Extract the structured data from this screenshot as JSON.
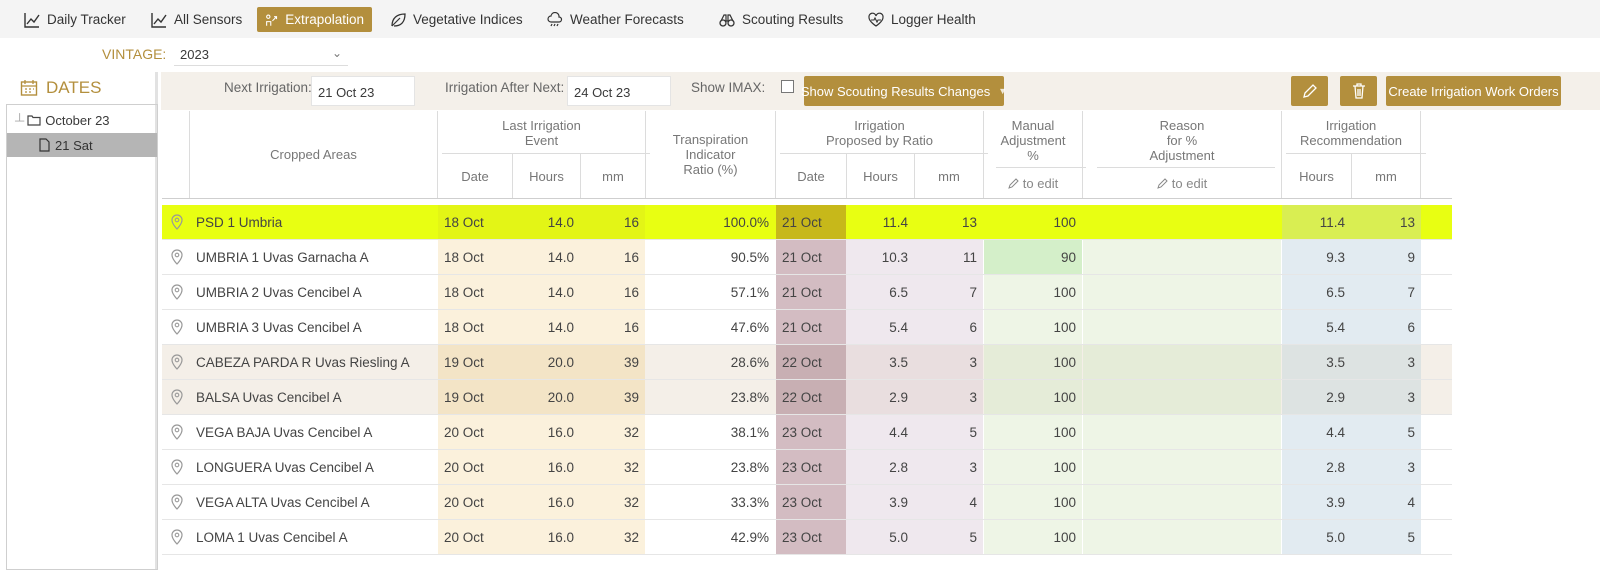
{
  "nav": {
    "items": [
      {
        "label": "Daily Tracker",
        "icon": "chart-line-icon"
      },
      {
        "label": "All Sensors",
        "icon": "chart-line-icon"
      },
      {
        "label": "Extrapolation",
        "icon": "extrapolation-icon",
        "active": true
      },
      {
        "label": "Vegetative Indices",
        "icon": "leaf-icon"
      },
      {
        "label": "Weather Forecasts",
        "icon": "cloud-rain-icon"
      },
      {
        "label": "Scouting Results",
        "icon": "binoculars-icon"
      },
      {
        "label": "Logger Health",
        "icon": "heart-pulse-icon"
      }
    ]
  },
  "vintage": {
    "label": "VINTAGE:",
    "value": "2023"
  },
  "dates": {
    "title": "DATES",
    "tree": [
      {
        "label": "October 23",
        "type": "folder"
      },
      {
        "label": "21 Sat",
        "type": "file",
        "selected": true
      }
    ]
  },
  "toolbar": {
    "next_irrigation_label": "Next Irrigation:",
    "next_irrigation_value": "21 Oct 23",
    "after_next_label": "Irrigation After Next:",
    "after_next_value": "24 Oct 23",
    "show_imax_label": "Show IMAX:",
    "scouting_button": "Show Scouting Results Changes",
    "create_orders_button": "Create Irrigation Work Orders"
  },
  "headers": {
    "cropped_areas": "Cropped Areas",
    "last_event": "Last Irrigation\nEvent",
    "tir": "Transpiration\nIndicator\nRatio (%)",
    "proposed": "Irrigation\nProposed by Ratio",
    "manual": "Manual\nAdjustment\n%",
    "reason": "Reason\nfor %\nAdjustment",
    "recommendation": "Irrigation\nRecommendation",
    "date": "Date",
    "hours": "Hours",
    "mm": "mm",
    "to_edit": "to edit"
  },
  "colors": {
    "accent": "#b38f3d",
    "highlight_row": "#e8ff12",
    "last_event_bg": "#fbf1dc",
    "proposed_date_bg": "#d3bcc2",
    "proposed_bg": "#efe8ee",
    "manual_bg": "#eef5e6",
    "rec_bg": "#e2ebf1"
  },
  "rows": [
    {
      "area": "PSD 1 Umbria",
      "last_date": "18 Oct",
      "last_hours": "14.0",
      "last_mm": "16",
      "tir": "100.0%",
      "prop_date": "21 Oct",
      "prop_hours": "11.4",
      "prop_mm": "13",
      "manual": "100",
      "reason": "",
      "rec_hours": "11.4",
      "rec_mm": "13",
      "highlight": true
    },
    {
      "area": "UMBRIA 1 Uvas Garnacha A",
      "last_date": "18 Oct",
      "last_hours": "14.0",
      "last_mm": "16",
      "tir": "90.5%",
      "prop_date": "21 Oct",
      "prop_hours": "10.3",
      "prop_mm": "11",
      "manual": "90",
      "reason": "",
      "rec_hours": "9.3",
      "rec_mm": "9",
      "manual_changed": true
    },
    {
      "area": "UMBRIA 2 Uvas Cencibel A",
      "last_date": "18 Oct",
      "last_hours": "14.0",
      "last_mm": "16",
      "tir": "57.1%",
      "prop_date": "21 Oct",
      "prop_hours": "6.5",
      "prop_mm": "7",
      "manual": "100",
      "reason": "",
      "rec_hours": "6.5",
      "rec_mm": "7"
    },
    {
      "area": "UMBRIA 3 Uvas Cencibel A",
      "last_date": "18 Oct",
      "last_hours": "14.0",
      "last_mm": "16",
      "tir": "47.6%",
      "prop_date": "21 Oct",
      "prop_hours": "5.4",
      "prop_mm": "6",
      "manual": "100",
      "reason": "",
      "rec_hours": "5.4",
      "rec_mm": "6"
    },
    {
      "area": "CABEZA PARDA R Uvas Riesling A",
      "last_date": "19 Oct",
      "last_hours": "20.0",
      "last_mm": "39",
      "tir": "28.6%",
      "prop_date": "22 Oct",
      "prop_hours": "3.5",
      "prop_mm": "3",
      "manual": "100",
      "reason": "",
      "rec_hours": "3.5",
      "rec_mm": "3",
      "shaded": true
    },
    {
      "area": "BALSA Uvas Cencibel A",
      "last_date": "19 Oct",
      "last_hours": "20.0",
      "last_mm": "39",
      "tir": "23.8%",
      "prop_date": "22 Oct",
      "prop_hours": "2.9",
      "prop_mm": "3",
      "manual": "100",
      "reason": "",
      "rec_hours": "2.9",
      "rec_mm": "3",
      "shaded": true
    },
    {
      "area": "VEGA BAJA Uvas Cencibel A",
      "last_date": "20 Oct",
      "last_hours": "16.0",
      "last_mm": "32",
      "tir": "38.1%",
      "prop_date": "23 Oct",
      "prop_hours": "4.4",
      "prop_mm": "5",
      "manual": "100",
      "reason": "",
      "rec_hours": "4.4",
      "rec_mm": "5"
    },
    {
      "area": "LONGUERA Uvas Cencibel A",
      "last_date": "20 Oct",
      "last_hours": "16.0",
      "last_mm": "32",
      "tir": "23.8%",
      "prop_date": "23 Oct",
      "prop_hours": "2.8",
      "prop_mm": "3",
      "manual": "100",
      "reason": "",
      "rec_hours": "2.8",
      "rec_mm": "3"
    },
    {
      "area": "VEGA ALTA Uvas Cencibel A",
      "last_date": "20 Oct",
      "last_hours": "16.0",
      "last_mm": "32",
      "tir": "33.3%",
      "prop_date": "23 Oct",
      "prop_hours": "3.9",
      "prop_mm": "4",
      "manual": "100",
      "reason": "",
      "rec_hours": "3.9",
      "rec_mm": "4"
    },
    {
      "area": "LOMA 1 Uvas Cencibel A",
      "last_date": "20 Oct",
      "last_hours": "16.0",
      "last_mm": "32",
      "tir": "42.9%",
      "prop_date": "23 Oct",
      "prop_hours": "5.0",
      "prop_mm": "5",
      "manual": "100",
      "reason": "",
      "rec_hours": "5.0",
      "rec_mm": "5"
    }
  ]
}
